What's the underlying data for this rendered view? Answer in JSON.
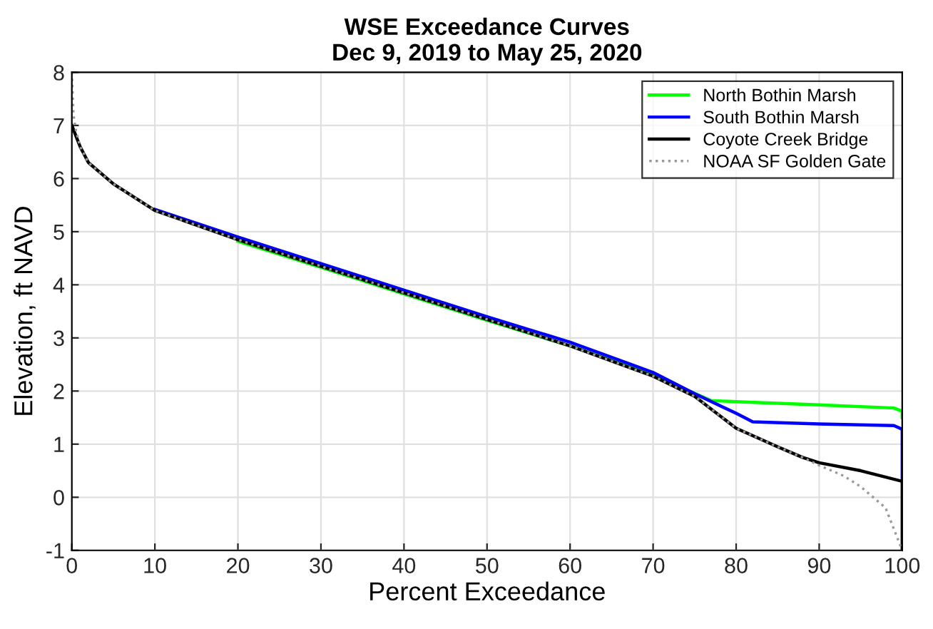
{
  "chart_data": {
    "type": "line",
    "title": "WSE Exceedance Curves\nDec 9, 2019 to May 25, 2020",
    "xlabel": "Percent Exceedance",
    "ylabel": "Elevation, ft NAVD",
    "xlim": [
      0,
      100
    ],
    "ylim": [
      -1,
      8
    ],
    "xticks": [
      0,
      10,
      20,
      30,
      40,
      50,
      60,
      70,
      80,
      90,
      100
    ],
    "yticks": [
      -1,
      0,
      1,
      2,
      3,
      4,
      5,
      6,
      7,
      8
    ],
    "grid": true,
    "legend": "top right",
    "series": [
      {
        "name": "North Bothin Marsh",
        "color": "#00ff00",
        "x": [
          20,
          30,
          40,
          50,
          60,
          70,
          77,
          80,
          90,
          99,
          100,
          100
        ],
        "values": [
          4.82,
          4.33,
          3.83,
          3.33,
          2.85,
          2.3,
          1.82,
          1.8,
          1.74,
          1.68,
          1.62,
          1.5
        ]
      },
      {
        "name": "South Bothin Marsh",
        "color": "#0000ff",
        "x": [
          10,
          20,
          30,
          40,
          50,
          60,
          70,
          75,
          80,
          82,
          90,
          99,
          100,
          100
        ],
        "values": [
          5.42,
          4.9,
          4.4,
          3.9,
          3.4,
          2.92,
          2.35,
          1.95,
          1.58,
          1.42,
          1.38,
          1.35,
          1.28,
          0.3
        ]
      },
      {
        "name": "Coyote Creek Bridge",
        "color": "#000000",
        "x": [
          0,
          1,
          2,
          5,
          10,
          20,
          30,
          40,
          50,
          60,
          70,
          75,
          80,
          85,
          88,
          90,
          95,
          100,
          100
        ],
        "values": [
          7.0,
          6.6,
          6.3,
          5.9,
          5.4,
          4.85,
          4.35,
          3.85,
          3.35,
          2.85,
          2.28,
          1.9,
          1.3,
          0.95,
          0.75,
          0.65,
          0.5,
          0.3,
          -1
        ]
      },
      {
        "name": "NOAA SF Golden Gate",
        "color": "#999999",
        "line_style": "dotted",
        "x": [
          0,
          0.2,
          0.5,
          1,
          2,
          5,
          10,
          20,
          30,
          40,
          50,
          60,
          70,
          75,
          80,
          85,
          88,
          90,
          93,
          95,
          98,
          100
        ],
        "values": [
          8,
          7.2,
          6.9,
          6.6,
          6.3,
          5.9,
          5.4,
          4.85,
          4.35,
          3.85,
          3.35,
          2.85,
          2.28,
          1.9,
          1.3,
          0.95,
          0.75,
          0.6,
          0.4,
          0.2,
          -0.2,
          -1
        ]
      }
    ]
  }
}
